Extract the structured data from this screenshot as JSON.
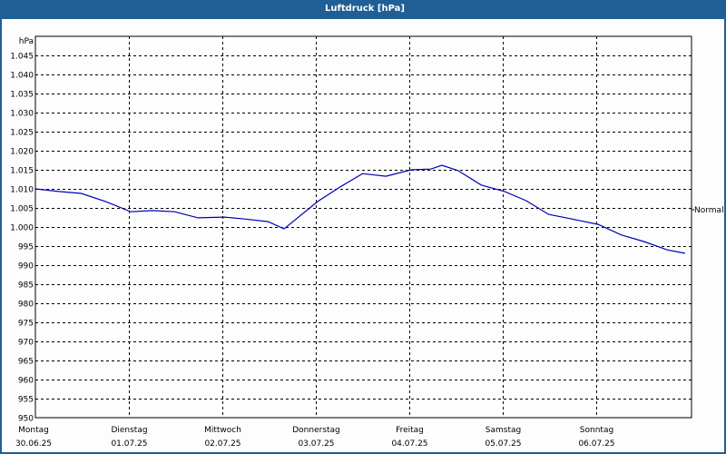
{
  "window": {
    "title": "Luftdruck [hPa]"
  },
  "colors": {
    "titlebar": "#1f5f96",
    "line": "#0000b4",
    "grid": "#000000",
    "background": "#fcfdfc"
  },
  "chart_data": {
    "type": "line",
    "title": "Luftdruck [hPa]",
    "ylabel": "hPa",
    "xlabel": "",
    "ylim": [
      950,
      1050
    ],
    "grid": true,
    "legend": {
      "entries": [
        "Normal"
      ],
      "position": "right"
    },
    "y_ticks": [
      "950",
      "955",
      "960",
      "965",
      "970",
      "975",
      "980",
      "985",
      "990",
      "995",
      "1.000",
      "1.005",
      "1.010",
      "1.015",
      "1.020",
      "1.025",
      "1.030",
      "1.035",
      "1.040",
      "1.045"
    ],
    "x_ticks": [
      {
        "day": "Montag",
        "date": "30.06.25"
      },
      {
        "day": "Dienstag",
        "date": "01.07.25"
      },
      {
        "day": "Mittwoch",
        "date": "02.07.25"
      },
      {
        "day": "Donnerstag",
        "date": "03.07.25"
      },
      {
        "day": "Freitag",
        "date": "04.07.25"
      },
      {
        "day": "Samstag",
        "date": "05.07.25"
      },
      {
        "day": "Sonntag",
        "date": "06.07.25"
      }
    ],
    "series": [
      {
        "name": "Luftdruck",
        "x_days": [
          0,
          0.25,
          0.49,
          0.75,
          1.02,
          1.25,
          1.49,
          1.74,
          2.02,
          2.24,
          2.49,
          2.66,
          3.02,
          3.26,
          3.5,
          3.75,
          4.02,
          4.23,
          4.35,
          4.52,
          4.77,
          5.02,
          5.25,
          5.49,
          5.74,
          6.02,
          6.27,
          6.51,
          6.76,
          6.95
        ],
        "values": [
          1010.0,
          1009.3,
          1008.8,
          1006.7,
          1004.0,
          1004.3,
          1004.0,
          1002.4,
          1002.6,
          1002.1,
          1001.4,
          999.5,
          1006.7,
          1010.5,
          1014.0,
          1013.3,
          1015.0,
          1015.2,
          1016.2,
          1014.8,
          1011.0,
          1009.3,
          1006.9,
          1003.3,
          1002.1,
          1000.7,
          997.9,
          996.2,
          994.0,
          993.1
        ]
      }
    ]
  }
}
